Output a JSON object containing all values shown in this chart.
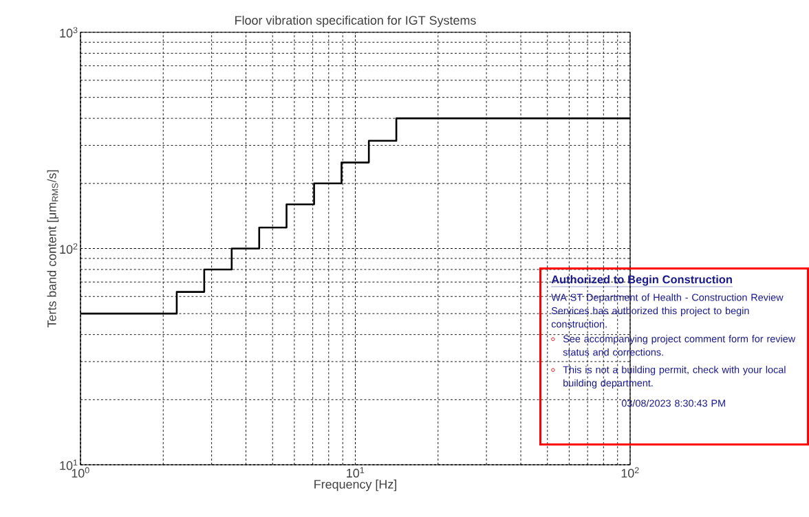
{
  "chart_data": {
    "type": "step",
    "title": "Floor vibration specification for IGT Systems",
    "xlabel": "Frequency [Hz]",
    "ylabel": "Terts band content [μm$_{RMS}$/s]",
    "log": "xy",
    "grid": true,
    "marker": "none",
    "line_style": "solid",
    "xlim": [
      1,
      100
    ],
    "ylim": [
      10,
      1000
    ],
    "xticks": [
      {
        "value": 1,
        "label": "10$^{0}$"
      },
      {
        "value": 10,
        "label": "10$^{1}$"
      },
      {
        "value": 100,
        "label": "10$^{2}$"
      }
    ],
    "yticks": [
      {
        "value": 10,
        "label": "10$^{1}$"
      },
      {
        "value": 100,
        "label": "10$^{2}$"
      },
      {
        "value": 1000,
        "label": "10$^{3}$"
      }
    ],
    "series": [
      {
        "color": "#000000",
        "x": [
          1,
          2.24,
          2.82,
          3.55,
          4.47,
          5.62,
          7.08,
          8.91,
          11.2,
          14.1,
          100
        ],
        "values": [
          50,
          63,
          80,
          100,
          125,
          160,
          200,
          250,
          315,
          400,
          400
        ]
      }
    ],
    "annotations": [
      "Authorized to Begin Construction",
      "WA ST Department of Health - Construction Review Services has authorized this project to begin construction.",
      "See accompanying project comment form for review status and corrections.",
      "This is not a building permit, check with your local building department.",
      "03/08/2023 8:30:43 PM"
    ]
  }
}
